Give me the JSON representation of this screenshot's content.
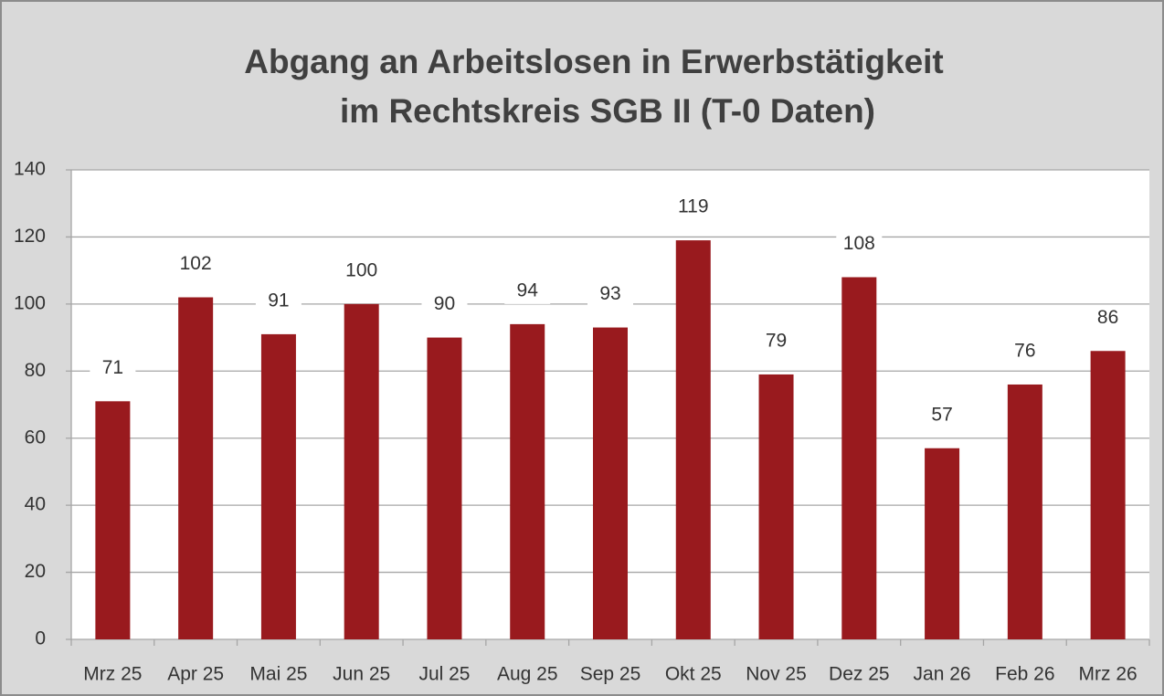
{
  "chart_data": {
    "type": "bar",
    "title": [
      "Abgang an Arbeitslosen  in Erwerbstätigkeit",
      "im Rechtskreis  SGB II  (T-0 Daten)"
    ],
    "categories": [
      "Mrz 25",
      "Apr 25",
      "Mai 25",
      "Jun 25",
      "Jul 25",
      "Aug 25",
      "Sep 25",
      "Okt 25",
      "Nov 25",
      "Dez 25",
      "Jan 26",
      "Feb 26",
      "Mrz 26"
    ],
    "values": [
      71,
      102,
      91,
      100,
      90,
      94,
      93,
      119,
      79,
      108,
      57,
      76,
      86
    ],
    "color": "#991a1e",
    "ylim": [
      0,
      140
    ],
    "yticks": [
      0,
      20,
      40,
      60,
      80,
      100,
      120,
      140
    ],
    "grid": true
  }
}
